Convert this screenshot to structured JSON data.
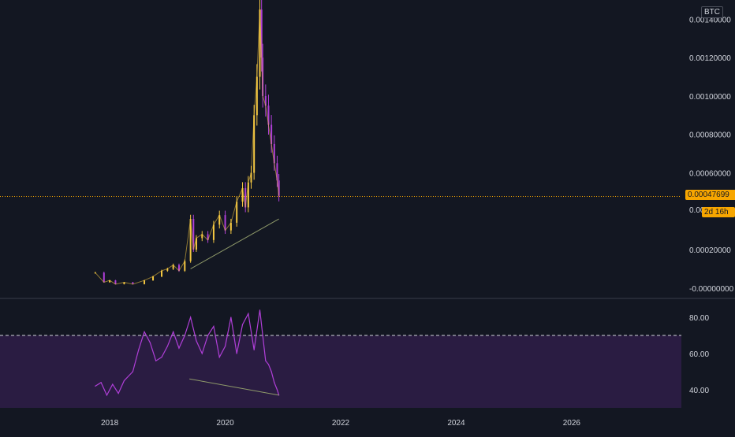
{
  "currency_label": "BTC",
  "price_axis": {
    "ticks": [
      "0.00140000",
      "0.00120000",
      "0.00100000",
      "0.00080000",
      "0.00060000",
      "0.00020000",
      "-0.00000000"
    ],
    "tick_values": [
      0.0014,
      0.0012,
      0.001,
      0.0008,
      0.0006,
      0.0002,
      0.0
    ],
    "partial_tick_label": "0.00",
    "range": [
      -5e-05,
      0.0015
    ]
  },
  "current_price": {
    "label": "0.00047699",
    "value": 0.00047699,
    "countdown": "2d 16h",
    "color": "#f7a600"
  },
  "rsi_axis": {
    "ticks": [
      "80.00",
      "60.00",
      "40.00"
    ],
    "tick_values": [
      80,
      60,
      40
    ],
    "range": [
      30,
      90
    ],
    "upper_band": 70,
    "lower_band": 30
  },
  "time_axis": {
    "ticks": [
      "2018",
      "2020",
      "2022",
      "2024",
      "2026"
    ],
    "tick_values": [
      2018,
      2020,
      2022,
      2024,
      2026
    ],
    "range": [
      2016.1,
      2027.9
    ]
  },
  "colors": {
    "background": "#131722",
    "up": "#f5c842",
    "down": "#b03fd8",
    "rsi_line": "#b03fd8",
    "rsi_band_fill": "#2a1c42",
    "trendline": "#8f9a6a",
    "text": "#d1d4dc",
    "divider": "#3a3e4a"
  },
  "chart_data": {
    "type": "candlestick",
    "price_series": {
      "x": [
        2017.75,
        2017.9,
        2018.0,
        2018.1,
        2018.25,
        2018.4,
        2018.6,
        2018.75,
        2018.9,
        2019.0,
        2019.1,
        2019.2,
        2019.3,
        2019.4,
        2019.45,
        2019.5,
        2019.6,
        2019.7,
        2019.8,
        2019.9,
        2020.0,
        2020.1,
        2020.2,
        2020.3,
        2020.35,
        2020.4,
        2020.45,
        2020.5,
        2020.55,
        2020.6,
        2020.63,
        2020.65,
        2020.7,
        2020.75,
        2020.8,
        2020.85,
        2020.9,
        2020.93
      ],
      "y": [
        8e-05,
        3e-05,
        4e-05,
        2e-05,
        3e-05,
        2e-05,
        4e-05,
        6e-05,
        9e-05,
        0.0001,
        0.00012,
        9e-05,
        0.00014,
        0.00036,
        0.0002,
        0.00026,
        0.00028,
        0.00025,
        0.00033,
        0.00038,
        0.0003,
        0.00034,
        0.00045,
        0.00052,
        0.00042,
        0.00055,
        0.0006,
        0.0009,
        0.0011,
        0.00145,
        0.0012,
        0.001,
        0.00095,
        0.00085,
        0.00075,
        0.00065,
        0.00056,
        0.00048
      ]
    },
    "price_trendline": {
      "x": [
        2019.4,
        2020.93
      ],
      "y": [
        0.0001,
        0.00036
      ]
    },
    "rsi_series": {
      "x": [
        2017.75,
        2017.85,
        2017.95,
        2018.05,
        2018.15,
        2018.25,
        2018.4,
        2018.5,
        2018.6,
        2018.7,
        2018.8,
        2018.9,
        2019.0,
        2019.1,
        2019.2,
        2019.3,
        2019.4,
        2019.5,
        2019.6,
        2019.7,
        2019.8,
        2019.9,
        2020.0,
        2020.1,
        2020.2,
        2020.3,
        2020.4,
        2020.5,
        2020.6,
        2020.65,
        2020.7,
        2020.75,
        2020.8,
        2020.85,
        2020.9,
        2020.93
      ],
      "y": [
        42,
        44,
        37,
        43,
        38,
        45,
        50,
        62,
        72,
        66,
        56,
        58,
        64,
        72,
        63,
        70,
        80,
        67,
        60,
        70,
        75,
        58,
        64,
        80,
        60,
        76,
        82,
        62,
        84,
        70,
        56,
        54,
        50,
        44,
        40,
        37
      ]
    },
    "rsi_trendline": {
      "x": [
        2019.38,
        2020.93
      ],
      "y": [
        46,
        37
      ]
    }
  }
}
